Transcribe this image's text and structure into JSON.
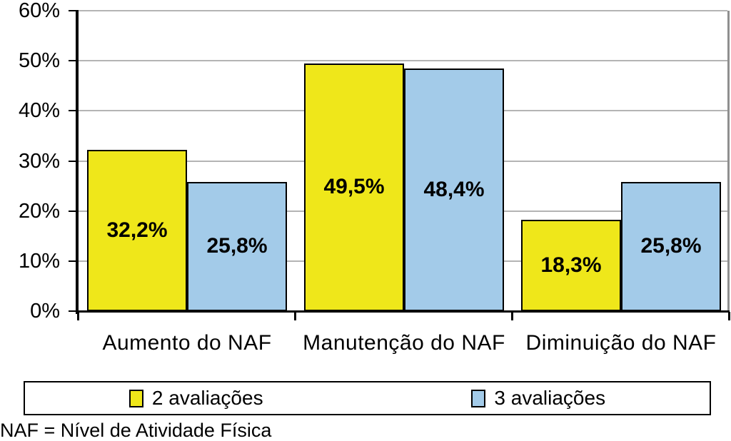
{
  "chart_data": {
    "type": "bar",
    "title": "",
    "xlabel": "",
    "ylabel": "",
    "categories": [
      "Aumento do NAF",
      "Manutenção do NAF",
      "Diminuição do NAF"
    ],
    "series": [
      {
        "name": "2 avaliações",
        "color": "#EFE71A",
        "values": [
          32.2,
          49.5,
          18.3
        ],
        "value_labels": [
          "32,2%",
          "49,5%",
          "18,3%"
        ]
      },
      {
        "name": "3 avaliações",
        "color": "#A3CBE9",
        "values": [
          25.8,
          48.4,
          25.8
        ],
        "value_labels": [
          "25,8%",
          "48,4%",
          "25,8%"
        ]
      }
    ],
    "y_axis": {
      "min": 0,
      "max": 60,
      "tick_step": 10,
      "tick_labels": [
        "0%",
        "10%",
        "20%",
        "30%",
        "40%",
        "50%",
        "60%"
      ]
    },
    "grid": true,
    "legend_position": "bottom",
    "value_label_position": "centered-inside-bar"
  },
  "legend": {
    "entries": [
      {
        "label": "2 avaliações",
        "color": "#EFE71A"
      },
      {
        "label": "3 avaliações",
        "color": "#A3CBE9"
      }
    ]
  },
  "footnote": "NAF = Nível de Atividade Física",
  "colors": {
    "bar_yellow": "#EFE71A",
    "bar_blue": "#A3CBE9",
    "bar_border": "#000000",
    "gridline": "#b4b4b4",
    "axis": "#000000",
    "plot_right_border": "#8f8f8f",
    "background": "#ffffff",
    "text": "#000000"
  }
}
